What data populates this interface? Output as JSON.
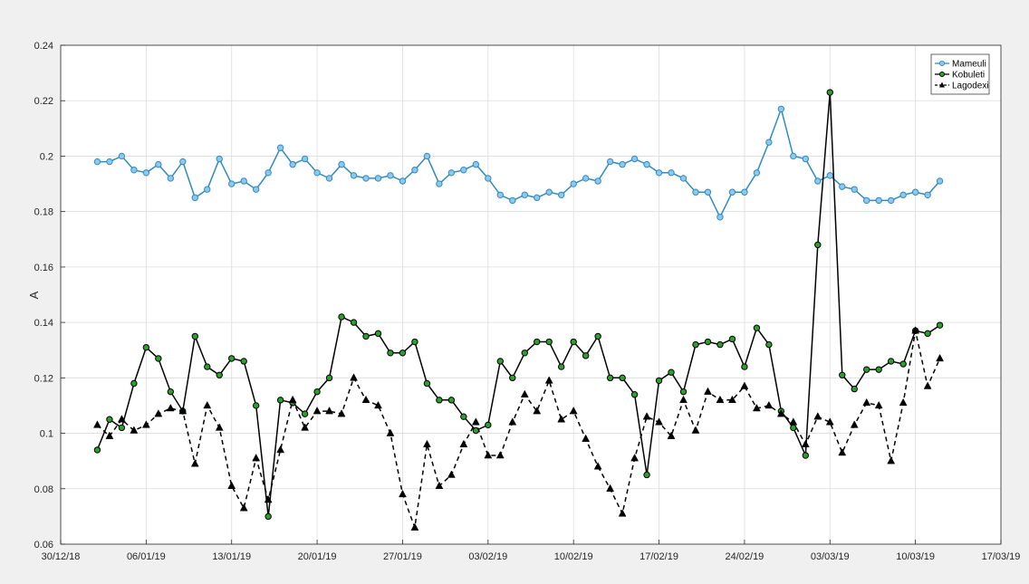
{
  "chart_data": {
    "type": "line",
    "ylabel": "A",
    "ylim": [
      0.06,
      0.24
    ],
    "yticks": [
      "0.06",
      "0.08",
      "0.1",
      "0.12",
      "0.14",
      "0.16",
      "0.18",
      "0.2",
      "0.22",
      "0.24"
    ],
    "xlim": [
      "2018-12-30",
      "2019-03-17"
    ],
    "xticks": [
      "30/12/18",
      "06/01/19",
      "13/01/19",
      "20/01/19",
      "27/01/19",
      "03/02/19",
      "10/02/19",
      "17/02/19",
      "24/02/19",
      "03/03/19",
      "10/03/19",
      "17/03/19"
    ],
    "grid": true,
    "legend_position": "top-right",
    "x": [
      "2019-01-02",
      "2019-01-03",
      "2019-01-04",
      "2019-01-05",
      "2019-01-06",
      "2019-01-07",
      "2019-01-08",
      "2019-01-09",
      "2019-01-10",
      "2019-01-11",
      "2019-01-12",
      "2019-01-13",
      "2019-01-14",
      "2019-01-15",
      "2019-01-16",
      "2019-01-17",
      "2019-01-18",
      "2019-01-19",
      "2019-01-20",
      "2019-01-21",
      "2019-01-22",
      "2019-01-23",
      "2019-01-24",
      "2019-01-25",
      "2019-01-26",
      "2019-01-27",
      "2019-01-28",
      "2019-01-29",
      "2019-01-30",
      "2019-01-31",
      "2019-02-01",
      "2019-02-02",
      "2019-02-03",
      "2019-02-04",
      "2019-02-05",
      "2019-02-06",
      "2019-02-07",
      "2019-02-08",
      "2019-02-09",
      "2019-02-10",
      "2019-02-11",
      "2019-02-12",
      "2019-02-13",
      "2019-02-14",
      "2019-02-15",
      "2019-02-16",
      "2019-02-17",
      "2019-02-18",
      "2019-02-19",
      "2019-02-20",
      "2019-02-21",
      "2019-02-22",
      "2019-02-23",
      "2019-02-24",
      "2019-02-25",
      "2019-02-26",
      "2019-02-27",
      "2019-02-28",
      "2019-03-01",
      "2019-03-02",
      "2019-03-03",
      "2019-03-04",
      "2019-03-05",
      "2019-03-06",
      "2019-03-07",
      "2019-03-08",
      "2019-03-09",
      "2019-03-10",
      "2019-03-11",
      "2019-03-12"
    ],
    "series": [
      {
        "name": "Mameuli",
        "color": "#2e8bc0",
        "marker": "circle",
        "line": "solid",
        "values": [
          0.198,
          0.198,
          0.2,
          0.195,
          0.194,
          0.197,
          0.192,
          0.198,
          0.185,
          0.188,
          0.199,
          0.19,
          0.191,
          0.188,
          0.194,
          0.203,
          0.197,
          0.199,
          0.194,
          0.192,
          0.197,
          0.193,
          0.192,
          0.192,
          0.193,
          0.191,
          0.195,
          0.2,
          0.19,
          0.194,
          0.195,
          0.197,
          0.192,
          0.186,
          0.184,
          0.186,
          0.185,
          0.187,
          0.186,
          0.19,
          0.192,
          0.191,
          0.198,
          0.197,
          0.199,
          0.197,
          0.194,
          0.194,
          0.192,
          0.187,
          0.187,
          0.178,
          0.187,
          0.187,
          0.194,
          0.205,
          0.217,
          0.2,
          0.199,
          0.191,
          0.193,
          0.189,
          0.188,
          0.184,
          0.184,
          0.184,
          0.186,
          0.187,
          0.186,
          0.191
        ]
      },
      {
        "name": "Kobuleti",
        "color": "#000000",
        "marker_fill": "#2ca02c",
        "marker": "circle",
        "line": "solid",
        "values": [
          0.094,
          0.105,
          0.102,
          0.118,
          0.131,
          0.127,
          0.115,
          0.108,
          0.135,
          0.124,
          0.121,
          0.127,
          0.126,
          0.11,
          0.07,
          0.112,
          0.111,
          0.107,
          0.115,
          0.12,
          0.142,
          0.14,
          0.135,
          0.136,
          0.129,
          0.129,
          0.133,
          0.118,
          0.112,
          0.112,
          0.106,
          0.101,
          0.103,
          0.126,
          0.12,
          0.129,
          0.133,
          0.133,
          0.124,
          0.133,
          0.128,
          0.135,
          0.12,
          0.12,
          0.114,
          0.085,
          0.119,
          0.122,
          0.115,
          0.132,
          0.133,
          0.132,
          0.134,
          0.124,
          0.138,
          0.132,
          0.108,
          0.102,
          0.092,
          0.168,
          0.223,
          0.121,
          0.116,
          0.123,
          0.123,
          0.126,
          0.125,
          0.137,
          0.136,
          0.139
        ]
      },
      {
        "name": "Lagodexi",
        "color": "#000000",
        "marker": "triangle",
        "line": "dashed",
        "values": [
          0.103,
          0.099,
          0.105,
          0.101,
          0.103,
          0.107,
          0.109,
          0.108,
          0.089,
          0.11,
          0.102,
          0.081,
          0.073,
          0.091,
          0.076,
          0.094,
          0.112,
          0.102,
          0.108,
          0.108,
          0.107,
          0.12,
          0.112,
          0.11,
          0.1,
          0.078,
          0.066,
          0.096,
          0.081,
          0.085,
          0.096,
          0.104,
          0.092,
          0.092,
          0.104,
          0.114,
          0.108,
          0.119,
          0.105,
          0.108,
          0.098,
          0.088,
          0.08,
          0.071,
          0.091,
          0.106,
          0.104,
          0.099,
          0.112,
          0.101,
          0.115,
          0.112,
          0.112,
          0.117,
          0.109,
          0.11,
          0.107,
          0.104,
          0.096,
          0.106,
          0.104,
          0.093,
          0.103,
          0.111,
          0.11,
          0.09,
          0.111,
          0.137,
          0.117,
          0.127
        ]
      }
    ]
  }
}
